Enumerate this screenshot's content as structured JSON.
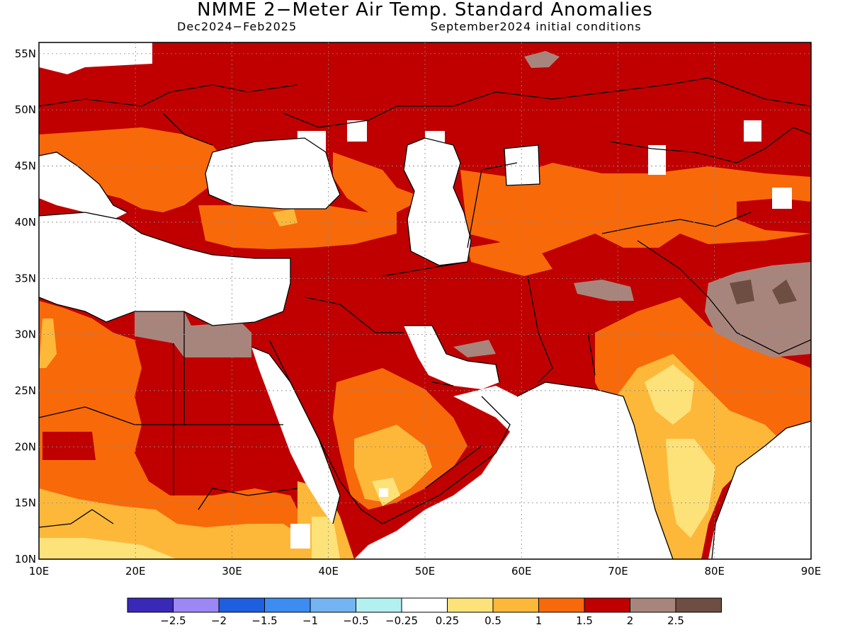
{
  "header": {
    "title": "NMME 2−Meter Air Temp. Standard Anomalies",
    "period": "Dec2024−Feb2025",
    "init": "September2024 initial conditions"
  },
  "map": {
    "lon_range": [
      10,
      90
    ],
    "lat_range": [
      10,
      56
    ],
    "lon_labels": [
      "10E",
      "20E",
      "30E",
      "40E",
      "50E",
      "60E",
      "70E",
      "80E",
      "90E"
    ],
    "lat_labels": [
      "10N",
      "15N",
      "20N",
      "25N",
      "30N",
      "35N",
      "40N",
      "45N",
      "50N",
      "55N"
    ]
  },
  "legend": {
    "colors": [
      "#3a28b8",
      "#9b88f4",
      "#1e5fe0",
      "#3c8cf2",
      "#74b4f2",
      "#b4f0f0",
      "#ffffff",
      "#fde27a",
      "#fdb83a",
      "#f8690a",
      "#c00000",
      "#a8857c",
      "#6e4e42"
    ],
    "labels": [
      "−2.5",
      "−2",
      "−1.5",
      "−1",
      "−0.5",
      "−0.25",
      "0.25",
      "0.5",
      "1",
      "1.5",
      "2",
      "2.5"
    ]
  }
}
